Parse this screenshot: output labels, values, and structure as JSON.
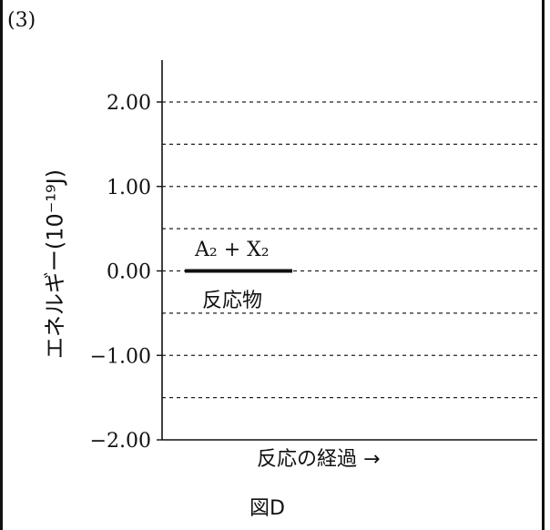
{
  "question_number": "(3)",
  "chart_data": {
    "type": "line",
    "ylabel": "エネルギー(10⁻¹⁹J)",
    "xlabel": "反応の経過 →",
    "caption": "図D",
    "ylim": [
      -2.0,
      2.5
    ],
    "yticks": [
      {
        "value": 2.0,
        "label": "2.00"
      },
      {
        "value": 1.0,
        "label": "1.00"
      },
      {
        "value": 0.0,
        "label": "0.00"
      },
      {
        "value": -1.0,
        "label": "−1.00"
      },
      {
        "value": -2.0,
        "label": "−2.00"
      }
    ],
    "gridlines": [
      2.0,
      1.5,
      1.0,
      0.5,
      0.0,
      -0.5,
      -1.0,
      -1.5
    ],
    "grid_style": "dashed",
    "levels": [
      {
        "name": "反応物",
        "species": "A₂ + X₂",
        "energy": 0.0
      }
    ]
  }
}
